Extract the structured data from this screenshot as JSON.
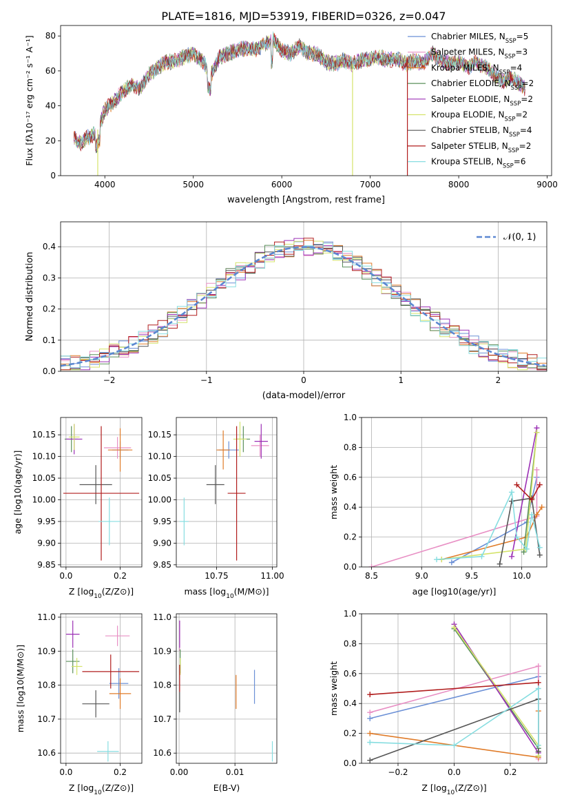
{
  "figure": {
    "title": "PLATE=1816, MJD=53919, FIBERID=0326, z=0.047"
  },
  "series_colors": [
    "#6a8fd6",
    "#e88fc4",
    "#e07b28",
    "#5a8f5a",
    "#9b2fb5",
    "#d4e36a",
    "#555555",
    "#b01c1c",
    "#86dde0"
  ],
  "chart_data": [
    {
      "panel": "spectrum",
      "type": "line",
      "title": "PLATE=1816, MJD=53919, FIBERID=0326, z=0.047",
      "xlabel": "wavelength [Angstrom, rest frame]",
      "ylabel": "Flux [f_λ 10^-17 erg cm^-2 s^-1 A^-1]",
      "xlim": [
        3500,
        9050
      ],
      "ylim": [
        0,
        86
      ],
      "xticks": [
        "4000",
        "5000",
        "6000",
        "7000",
        "8000",
        "9000"
      ],
      "yticks": [
        "0",
        "20",
        "40",
        "60",
        "80"
      ],
      "grid": false,
      "legend": "top-right",
      "x": [
        3650,
        3700,
        3800,
        3900,
        3950,
        4000,
        4100,
        4200,
        4300,
        4400,
        4500,
        4600,
        4700,
        4800,
        4900,
        5000,
        5100,
        5200,
        5300,
        5400,
        5500,
        5600,
        5700,
        5800,
        5900,
        6000,
        6100,
        6200,
        6300,
        6400,
        6500,
        6600,
        6700,
        6800,
        6900,
        7000,
        7100,
        7200,
        7300,
        7400,
        7500,
        7600,
        7700,
        7800,
        7900,
        8000,
        8100,
        8200,
        8300,
        8400,
        8500,
        8600,
        8700,
        8750
      ],
      "flux": [
        22,
        18,
        22,
        24,
        30,
        38,
        42,
        48,
        52,
        50,
        58,
        62,
        65,
        66,
        68,
        70,
        66,
        58,
        68,
        70,
        72,
        73,
        72,
        75,
        78,
        72,
        70,
        74,
        70,
        70,
        65,
        64,
        66,
        64,
        66,
        67,
        68,
        66,
        67,
        64,
        66,
        64,
        70,
        66,
        64,
        65,
        62,
        65,
        62,
        58,
        54,
        56,
        52,
        50
      ],
      "spikes": [
        {
          "series": "Kroupa ELODIE",
          "x": 3920
        },
        {
          "series": "Kroupa ELODIE",
          "x": 6800
        },
        {
          "series": "Salpeter STELIB",
          "x": 7420
        }
      ],
      "series": [
        {
          "name": "Chabrier MILES, N_SSP=5",
          "label": "Chabrier MILES, N",
          "sub": "SSP",
          "suffix": "=5"
        },
        {
          "name": "Salpeter MILES, N_SSP=3",
          "label": "Salpeter MILES, N",
          "sub": "SSP",
          "suffix": "=3"
        },
        {
          "name": "Kroupa MILES, N_SSP=4",
          "label": "Kroupa MILES, N",
          "sub": "SSP",
          "suffix": "=4"
        },
        {
          "name": "Chabrier ELODIE, N_SSP=2",
          "label": "Chabrier ELODIE, N",
          "sub": "SSP",
          "suffix": "=2"
        },
        {
          "name": "Salpeter ELODIE, N_SSP=2",
          "label": "Salpeter ELODIE, N",
          "sub": "SSP",
          "suffix": "=2"
        },
        {
          "name": "Kroupa ELODIE, N_SSP=2",
          "label": "Kroupa ELODIE, N",
          "sub": "SSP",
          "suffix": "=2"
        },
        {
          "name": "Chabrier STELIB, N_SSP=4",
          "label": "Chabrier STELIB, N",
          "sub": "SSP",
          "suffix": "=4"
        },
        {
          "name": "Salpeter STELIB, N_SSP=2",
          "label": "Salpeter STELIB, N",
          "sub": "SSP",
          "suffix": "=2"
        },
        {
          "name": "Kroupa STELIB, N_SSP=6",
          "label": "Kroupa STELIB, N",
          "sub": "SSP",
          "suffix": "=6"
        }
      ]
    },
    {
      "panel": "residuals",
      "type": "histogram",
      "xlabel": "(data-model)/error",
      "ylabel": "Normed distribution",
      "xlim": [
        -2.5,
        2.5
      ],
      "ylim": [
        0,
        0.48
      ],
      "xticks": [
        {
          "v": -2,
          "t": "−2"
        },
        {
          "v": -1,
          "t": "−1"
        },
        {
          "v": 0,
          "t": "0"
        },
        {
          "v": 1,
          "t": "1"
        },
        {
          "v": 2,
          "t": "2"
        }
      ],
      "yticks": [
        "0.0",
        "0.1",
        "0.2",
        "0.3",
        "0.4"
      ],
      "grid": true,
      "legend": "top-right",
      "reference_curve": {
        "name": "N(0,1)",
        "label": "𝒩(0, 1)",
        "mean": 0,
        "sigma": 1
      },
      "bin_width": 0.1
    },
    {
      "panel": "Z-age",
      "type": "errorbar",
      "xlabel_main": "Z [log",
      "xlabel_sub": "10",
      "xlabel_tail": "(Z/Z⊙)]",
      "ylabel": "age  [log10(age/yr)]",
      "xlim": [
        -0.02,
        0.28
      ],
      "ylim": [
        9.845,
        10.19
      ],
      "xticks": [
        "0.0",
        "0.2"
      ],
      "yticks": [
        "9.85",
        "9.90",
        "9.95",
        "10.00",
        "10.05",
        "10.10",
        "10.15"
      ],
      "grid": true,
      "points": [
        {
          "x": 0.2,
          "y": 10.115,
          "xerr": 0.03,
          "yerr": 0.02
        },
        {
          "x": 0.19,
          "y": 10.12,
          "xerr": 0.05,
          "yerr": 0.025
        },
        {
          "x": 0.2,
          "y": 10.115,
          "xerr": 0.045,
          "yerr": 0.05
        },
        {
          "x": 0.02,
          "y": 10.14,
          "xerr": 0.025,
          "yerr": 0.03
        },
        {
          "x": 0.03,
          "y": 10.14,
          "xerr": 0.03,
          "yerr": 0.035
        },
        {
          "x": 0.03,
          "y": 10.145,
          "xerr": 0.02,
          "yerr": 0.03
        },
        {
          "x": 0.11,
          "y": 10.035,
          "xerr": 0.06,
          "yerr": 0.045
        },
        {
          "x": 0.13,
          "y": 10.015,
          "xerr": 0.14,
          "yerr": 0.155
        },
        {
          "x": 0.16,
          "y": 9.95,
          "xerr": 0.04,
          "yerr": 0.055
        }
      ]
    },
    {
      "panel": "mass-age",
      "type": "errorbar",
      "xlabel_main": "mass [log",
      "xlabel_sub": "10",
      "xlabel_tail": "(M/M⊙)]",
      "ylabel": "",
      "xlim": [
        10.57,
        11.02
      ],
      "ylim": [
        9.845,
        10.19
      ],
      "xticks": [
        {
          "v": 10.75,
          "t": "10.75"
        },
        {
          "v": 11.0,
          "t": "11.00"
        }
      ],
      "yticks": [
        "9.85",
        "9.90",
        "9.95",
        "10.00",
        "10.05",
        "10.10",
        "10.15"
      ],
      "grid": true,
      "points": [
        {
          "x": 10.805,
          "y": 10.115,
          "xerr": 0.045,
          "yerr": 0.02
        },
        {
          "x": 10.945,
          "y": 10.125,
          "xerr": 0.04,
          "yerr": 0.025
        },
        {
          "x": 10.78,
          "y": 10.115,
          "xerr": 0.03,
          "yerr": 0.045
        },
        {
          "x": 10.87,
          "y": 10.14,
          "xerr": 0.03,
          "yerr": 0.03
        },
        {
          "x": 10.95,
          "y": 10.135,
          "xerr": 0.03,
          "yerr": 0.04
        },
        {
          "x": 10.855,
          "y": 10.14,
          "xerr": 0.03,
          "yerr": 0.04
        },
        {
          "x": 10.745,
          "y": 10.035,
          "xerr": 0.04,
          "yerr": 0.045
        },
        {
          "x": 10.84,
          "y": 10.015,
          "xerr": 0.04,
          "yerr": 0.155
        },
        {
          "x": 10.605,
          "y": 9.95,
          "xerr": 0.02,
          "yerr": 0.055
        }
      ]
    },
    {
      "panel": "age-weight",
      "type": "line",
      "xlabel": "age  [log10(age/yr)]",
      "ylabel": "mass weight",
      "xlim": [
        8.4,
        10.25
      ],
      "ylim": [
        0,
        1.0
      ],
      "xticks": [
        "8.5",
        "9.0",
        "9.5",
        "10.0"
      ],
      "yticks": [
        "0.0",
        "0.2",
        "0.4",
        "0.6",
        "0.8",
        "1.0"
      ],
      "grid": true,
      "series": [
        {
          "x": [
            9.3,
            10.05,
            10.15
          ],
          "y": [
            0.03,
            0.3,
            0.6
          ]
        },
        {
          "x": [
            8.5,
            10.15,
            10.15
          ],
          "y": [
            0.0,
            0.34,
            0.65
          ]
        },
        {
          "x": [
            9.2,
            10.05,
            10.15,
            10.2
          ],
          "y": [
            0.05,
            0.2,
            0.35,
            0.4
          ]
        },
        {
          "x": [
            10.02,
            10.15
          ],
          "y": [
            0.1,
            0.9
          ]
        },
        {
          "x": [
            9.9,
            10.15
          ],
          "y": [
            0.07,
            0.93
          ]
        },
        {
          "x": [
            9.2,
            10.04,
            10.15
          ],
          "y": [
            0.05,
            0.12,
            0.9
          ]
        },
        {
          "x": [
            9.78,
            9.9,
            10.1,
            10.18
          ],
          "y": [
            0.02,
            0.44,
            0.46,
            0.08
          ]
        },
        {
          "x": [
            9.95,
            10.1,
            10.18
          ],
          "y": [
            0.55,
            0.45,
            0.55
          ]
        },
        {
          "x": [
            9.15,
            9.6,
            9.9,
            9.95,
            10.05,
            10.1,
            10.18
          ],
          "y": [
            0.05,
            0.07,
            0.5,
            0.2,
            0.12,
            0.35,
            0.13
          ]
        }
      ]
    },
    {
      "panel": "Z-mass",
      "type": "errorbar",
      "xlabel_main": "Z [log",
      "xlabel_sub": "10",
      "xlabel_tail": "(Z/Z⊙)]",
      "ylabel": "mass [log10(M/M⊙)]",
      "xlim": [
        -0.02,
        0.28
      ],
      "ylim": [
        10.57,
        11.01
      ],
      "xticks": [
        "0.0",
        "0.2"
      ],
      "yticks": [
        "10.6",
        "10.7",
        "10.8",
        "10.9",
        "11.0"
      ],
      "grid": true,
      "points": [
        {
          "x": 0.195,
          "y": 10.805,
          "xerr": 0.035,
          "yerr": 0.045
        },
        {
          "x": 0.19,
          "y": 10.945,
          "xerr": 0.045,
          "yerr": 0.03
        },
        {
          "x": 0.2,
          "y": 10.775,
          "xerr": 0.04,
          "yerr": 0.045
        },
        {
          "x": 0.025,
          "y": 10.87,
          "xerr": 0.025,
          "yerr": 0.035
        },
        {
          "x": 0.025,
          "y": 10.95,
          "xerr": 0.025,
          "yerr": 0.04
        },
        {
          "x": 0.04,
          "y": 10.855,
          "xerr": 0.02,
          "yerr": 0.025
        },
        {
          "x": 0.11,
          "y": 10.745,
          "xerr": 0.05,
          "yerr": 0.04
        },
        {
          "x": 0.165,
          "y": 10.84,
          "xerr": 0.105,
          "yerr": 0.05
        },
        {
          "x": 0.155,
          "y": 10.605,
          "xerr": 0.04,
          "yerr": 0.03
        }
      ]
    },
    {
      "panel": "EBV-mass",
      "type": "errorbar",
      "xlabel": "E(B-V)",
      "ylabel": "",
      "xlim": [
        -0.0005,
        0.0175
      ],
      "ylim": [
        10.57,
        11.01
      ],
      "xticks": [
        "0.00",
        "0.01"
      ],
      "yticks": [
        "10.6",
        "10.7",
        "10.8",
        "10.9",
        "11.0"
      ],
      "grid": true,
      "points": [
        {
          "x": 0.0135,
          "y": 10.795,
          "xerr": 0.0,
          "yerr": 0.05
        },
        {
          "x": 0.0001,
          "y": 10.945,
          "xerr": 0.0,
          "yerr": 0.045
        },
        {
          "x": 0.0102,
          "y": 10.78,
          "xerr": 0.0,
          "yerr": 0.05
        },
        {
          "x": 0.0002,
          "y": 10.87,
          "xerr": 0.0,
          "yerr": 0.035
        },
        {
          "x": 0.0001,
          "y": 10.95,
          "xerr": 0.0,
          "yerr": 0.04
        },
        {
          "x": 0.0002,
          "y": 10.855,
          "xerr": 0.0,
          "yerr": 0.025
        },
        {
          "x": 0.0001,
          "y": 10.75,
          "xerr": 0.0,
          "yerr": 0.03
        },
        {
          "x": 0.0001,
          "y": 10.82,
          "xerr": 0.0,
          "yerr": 0.04
        },
        {
          "x": 0.0167,
          "y": 10.605,
          "xerr": 0.0,
          "yerr": 0.03
        }
      ]
    },
    {
      "panel": "Z-weight",
      "type": "line",
      "xlabel_main": "Z [log",
      "xlabel_sub": "10",
      "xlabel_tail": "(Z/Z⊙)]",
      "ylabel": "mass weight",
      "xlim": [
        -0.33,
        0.33
      ],
      "ylim": [
        0,
        1.0
      ],
      "xticks": [
        {
          "v": -0.2,
          "t": "−0.2"
        },
        {
          "v": 0.0,
          "t": "0.0"
        },
        {
          "v": 0.2,
          "t": "0.2"
        }
      ],
      "yticks": [
        "0.0",
        "0.2",
        "0.4",
        "0.6",
        "0.8",
        "1.0"
      ],
      "grid": true,
      "series": [
        {
          "x": [
            -0.3,
            0.3,
            0.3
          ],
          "y": [
            0.3,
            0.58,
            0.05
          ]
        },
        {
          "x": [
            -0.3,
            0.3,
            0.3
          ],
          "y": [
            0.34,
            0.65,
            0.03
          ]
        },
        {
          "x": [
            -0.3,
            0.3,
            0.3
          ],
          "y": [
            0.2,
            0.04,
            0.35
          ]
        },
        {
          "x": [
            0.0,
            0.3
          ],
          "y": [
            0.9,
            0.1
          ]
        },
        {
          "x": [
            0.0,
            0.3
          ],
          "y": [
            0.93,
            0.07
          ]
        },
        {
          "x": [
            0.0,
            0.3,
            0.3
          ],
          "y": [
            0.91,
            0.12,
            0.05
          ]
        },
        {
          "x": [
            -0.3,
            0.3,
            0.3
          ],
          "y": [
            0.02,
            0.43,
            0.08
          ]
        },
        {
          "x": [
            -0.3,
            0.3
          ],
          "y": [
            0.46,
            0.54
          ]
        },
        {
          "x": [
            -0.3,
            0.0,
            0.3,
            0.3
          ],
          "y": [
            0.14,
            0.12,
            0.5,
            0.12
          ]
        }
      ]
    }
  ]
}
